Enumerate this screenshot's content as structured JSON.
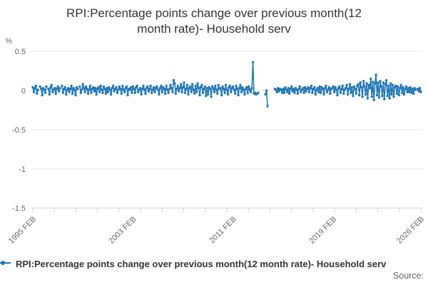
{
  "title": {
    "line1": "RPI:Percentage points change over previous month(12",
    "line2": "month rate)- Household serv"
  },
  "footer": {
    "source_label": "Source:"
  },
  "colors": {
    "series_blue": "#1f77b4",
    "grid": "#e6e6e6",
    "axis_line": "#c9d4e3",
    "axis_text": "#666666",
    "title_text": "#333333"
  },
  "chart_data": {
    "type": "line",
    "title": "RPI:Percentage points change over previous month(12 month rate)- Household serv",
    "unit_label": "%",
    "xlabel": "",
    "ylabel": "%",
    "ylim": [
      -1.5,
      0.5
    ],
    "grid": true,
    "legend_position": "bottom-left",
    "yticks": [
      {
        "value": 0.5,
        "label": "0.5"
      },
      {
        "value": 0,
        "label": "0"
      },
      {
        "value": -0.5,
        "label": "-0.5"
      },
      {
        "value": -1,
        "label": "-1"
      },
      {
        "value": -1.5,
        "label": "-1.5"
      }
    ],
    "x_start_label": "1995 FEB",
    "x_end_label": "2026 FEB",
    "months_total": 372,
    "x_tick_count": 19,
    "x_tick_labels": [
      "1995 FEB",
      "2003 FEB",
      "2011 FEB",
      "2019 FEB",
      "2026 FEB"
    ],
    "x_tick_label_month_positions": [
      0,
      96,
      192,
      288,
      372
    ],
    "series": [
      {
        "name": "RPI:Percentage points change over previous month(12 month rate)- Household serv",
        "color": "#1f77b4",
        "start": "1995 FEB",
        "frequency": "monthly",
        "values": [
          0.04,
          -0.02,
          0.03,
          0.06,
          -0.04,
          0.01,
          null,
          0.05,
          0.02,
          -0.06,
          0.03,
          0.01,
          -0.03,
          0.05,
          null,
          0.02,
          -0.05,
          0.04,
          0.07,
          -0.02,
          0.01,
          0.03,
          -0.04,
          0.02,
          0.05,
          -0.01,
          0.03,
          null,
          0.06,
          -0.03,
          0.02,
          0.04,
          -0.05,
          0.01,
          0.03,
          -0.02,
          0.02,
          0.06,
          -0.04,
          0.03,
          0.01,
          -0.06,
          0.04,
          0.02,
          null,
          0.05,
          -0.03,
          0.01,
          0.08,
          0.03,
          -0.02,
          0.05,
          0.02,
          -0.04,
          0.01,
          0.06,
          -0.03,
          0.02,
          0.04,
          -0.01,
          0.03,
          -0.05,
          0.02,
          0.04,
          -0.02,
          0.06,
          0.01,
          -0.03,
          0.05,
          0.02,
          -0.04,
          0.03,
          -0.02,
          0.04,
          0.01,
          -0.05,
          0.03,
          0.06,
          -0.01,
          0.02,
          0.04,
          -0.03,
          0.01,
          0.05,
          0.02,
          -0.04,
          0.06,
          0.01,
          -0.02,
          0.03,
          0.05,
          -0.06,
          0.02,
          0.01,
          0.04,
          -0.03,
          0.05,
          0.02,
          -0.03,
          0.04,
          0.06,
          -0.02,
          0.01,
          0.03,
          -0.05,
          0.02,
          0.06,
          0.01,
          -0.04,
          0.03,
          0.05,
          -0.01,
          0.02,
          0.06,
          -0.03,
          0.01,
          0.04,
          -0.02,
          0.03,
          0.05,
          0.01,
          -0.05,
          0.03,
          0.06,
          -0.02,
          0.04,
          0.02,
          -0.04,
          0.06,
          0.01,
          -0.03,
          0.02,
          0.07,
          0.03,
          -0.02,
          0.13,
          0.09,
          -0.04,
          0.02,
          0.06,
          -0.01,
          0.03,
          0.08,
          -0.02,
          0.04,
          0.1,
          -0.03,
          0.02,
          0.07,
          -0.05,
          0.03,
          0.05,
          -0.02,
          0.08,
          0.01,
          -0.04,
          0.06,
          -0.02,
          0.09,
          0.03,
          -0.06,
          0.04,
          0.07,
          -0.03,
          0.02,
          0.05,
          -0.07,
          0.03,
          -0.05,
          0.04,
          0.02,
          -0.08,
          0.05,
          0.03,
          -0.02,
          0.06,
          0.01,
          -0.04,
          0.07,
          0.02,
          0.03,
          -0.06,
          0.05,
          0.02,
          -0.03,
          0.07,
          0.01,
          -0.05,
          0.04,
          0.06,
          -0.02,
          0.03,
          0.05,
          0.01,
          -0.04,
          0.06,
          0.02,
          -0.06,
          0.03,
          0.07,
          -0.02,
          0.04,
          0.01,
          -0.05,
          0.02,
          0.04,
          -0.03,
          0.05,
          0.01,
          -0.02,
          0.03,
          0.36,
          -0.04,
          -0.03,
          -0.05,
          -0.04,
          -0.03,
          null,
          null,
          null,
          null,
          null,
          null,
          -0.05,
          0,
          -0.2,
          null,
          null,
          null,
          null,
          null,
          null,
          0.02,
          0.01,
          -0.02,
          0.03,
          -0.01,
          0.02,
          0.01,
          -0.03,
          0.02,
          -0.03,
          0.04,
          0.01,
          -0.02,
          0.03,
          -0.04,
          0.02,
          0.05,
          -0.01,
          0.02,
          -0.03,
          0.03,
          0.01,
          -0.04,
          0.02,
          0.05,
          -0.02,
          0.01,
          0.03,
          -0.03,
          0.04,
          -0.01,
          0.02,
          0.04,
          -0.02,
          0.03,
          0.06,
          -0.03,
          0.02,
          0.04,
          -0.05,
          0.01,
          0.03,
          -0.02,
          0.05,
          -0.03,
          0.04,
          0.02,
          -0.05,
          0.03,
          0.06,
          -0.02,
          0.01,
          0.04,
          -0.04,
          0.02,
          0.03,
          0.05,
          -0.02,
          0.04,
          0.01,
          -0.06,
          0.03,
          0.05,
          -0.03,
          0.02,
          0.06,
          -0.04,
          0.01,
          0.03,
          0.07,
          -0.05,
          0.02,
          0.08,
          -0.03,
          0.04,
          -0.07,
          0.05,
          0.02,
          -0.04,
          0.06,
          0.08,
          -0.06,
          0.1,
          0.04,
          -0.08,
          0.12,
          0.05,
          -0.05,
          0.09,
          -0.1,
          0.07,
          0.03,
          0.15,
          -0.08,
          0.11,
          -0.12,
          0.09,
          0.2,
          -0.06,
          0.1,
          -0.09,
          0.12,
          0.05,
          -0.07,
          0.1,
          -0.11,
          0.08,
          0.13,
          -0.07,
          0.06,
          -0.1,
          0.09,
          -0.05,
          0.07,
          -0.08,
          0.04,
          0.06,
          -0.04,
          0.05,
          -0.06,
          0.03,
          0.07,
          -0.03,
          0.04,
          -0.05,
          0.02,
          0.05,
          -0.02,
          0.03,
          -0.02,
          0.04,
          -0.03,
          0.02,
          -0.04,
          0.03,
          0.01,
          null,
          0.02,
          -0.01,
          0.03,
          -0.02
        ]
      }
    ]
  }
}
